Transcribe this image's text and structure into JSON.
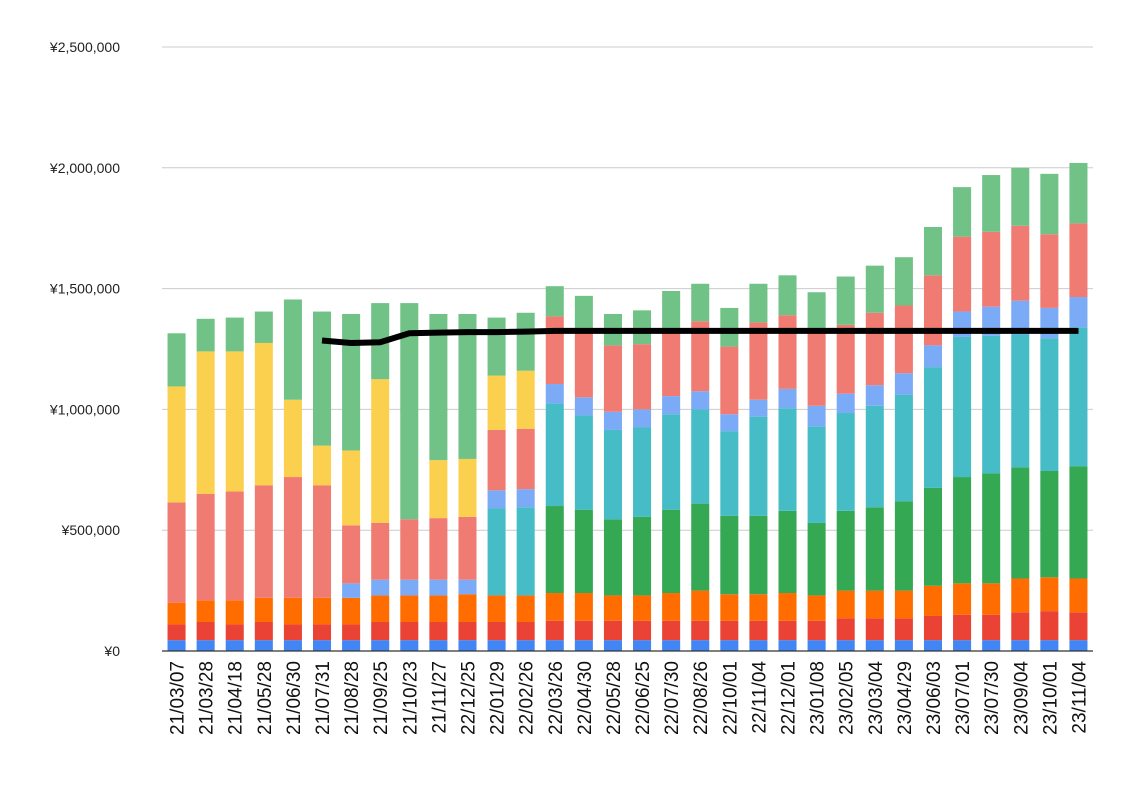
{
  "chart_data": {
    "type": "bar",
    "stacked": true,
    "grid": true,
    "ylim": [
      0,
      2500000
    ],
    "yticks": [
      {
        "value": 0,
        "label": "¥0"
      },
      {
        "value": 500000,
        "label": "¥500,000"
      },
      {
        "value": 1000000,
        "label": "¥1,000,000"
      },
      {
        "value": 1500000,
        "label": "¥1,500,000"
      },
      {
        "value": 2000000,
        "label": "¥2,000,000"
      },
      {
        "value": 2500000,
        "label": "¥2,500,000"
      }
    ],
    "categories": [
      "21/03/07",
      "21/03/28",
      "21/04/18",
      "21/05/28",
      "21/06/30",
      "21/07/31",
      "21/08/28",
      "21/09/25",
      "21/10/23",
      "21/11/27",
      "22/12/25",
      "22/01/29",
      "22/02/26",
      "22/03/26",
      "22/04/30",
      "22/05/28",
      "22/06/25",
      "22/07/30",
      "22/08/26",
      "22/10/01",
      "22/11/04",
      "22/12/01",
      "23/01/08",
      "23/02/05",
      "23/03/04",
      "23/04/29",
      "23/06/03",
      "23/07/01",
      "23/07/30",
      "23/09/04",
      "23/10/01",
      "23/11/04"
    ],
    "series": [
      {
        "color": "#4285f4",
        "values": [
          45000,
          45000,
          45000,
          45000,
          45000,
          45000,
          45000,
          45000,
          45000,
          45000,
          45000,
          45000,
          45000,
          45000,
          45000,
          45000,
          45000,
          45000,
          45000,
          45000,
          45000,
          45000,
          45000,
          45000,
          45000,
          45000,
          45000,
          45000,
          45000,
          45000,
          45000,
          45000
        ]
      },
      {
        "color": "#ea4335",
        "values": [
          65000,
          75000,
          65000,
          75000,
          65000,
          65000,
          65000,
          75000,
          75000,
          75000,
          75000,
          75000,
          75000,
          80000,
          80000,
          80000,
          80000,
          80000,
          80000,
          80000,
          80000,
          80000,
          80000,
          90000,
          90000,
          90000,
          100000,
          105000,
          105000,
          115000,
          120000,
          115000
        ]
      },
      {
        "color": "#ff6d01",
        "values": [
          90000,
          90000,
          100000,
          100000,
          110000,
          110000,
          110000,
          110000,
          110000,
          110000,
          115000,
          110000,
          110000,
          115000,
          115000,
          105000,
          105000,
          115000,
          125000,
          110000,
          110000,
          115000,
          105000,
          115000,
          115000,
          115000,
          125000,
          130000,
          130000,
          140000,
          140000,
          140000
        ]
      },
      {
        "color": "#34a853",
        "values": [
          0,
          0,
          0,
          0,
          0,
          0,
          0,
          0,
          0,
          0,
          0,
          0,
          0,
          360000,
          345000,
          315000,
          325000,
          345000,
          360000,
          325000,
          325000,
          340000,
          300000,
          330000,
          345000,
          370000,
          405000,
          440000,
          455000,
          460000,
          440000,
          465000
        ]
      },
      {
        "color": "#46bdc6",
        "values": [
          0,
          0,
          0,
          0,
          0,
          0,
          0,
          0,
          0,
          0,
          0,
          360000,
          365000,
          425000,
          390000,
          370000,
          370000,
          395000,
          390000,
          350000,
          410000,
          425000,
          400000,
          405000,
          420000,
          440000,
          500000,
          580000,
          570000,
          550000,
          550000,
          575000
        ]
      },
      {
        "color": "#7baaf7",
        "values": [
          0,
          0,
          0,
          0,
          0,
          0,
          60000,
          65000,
          65000,
          65000,
          60000,
          75000,
          75000,
          80000,
          75000,
          75000,
          75000,
          75000,
          75000,
          70000,
          70000,
          80000,
          85000,
          80000,
          85000,
          90000,
          90000,
          105000,
          120000,
          140000,
          125000,
          125000
        ]
      },
      {
        "color": "#f07b72",
        "values": [
          415000,
          440000,
          450000,
          465000,
          500000,
          465000,
          240000,
          235000,
          250000,
          255000,
          260000,
          250000,
          250000,
          280000,
          275000,
          275000,
          270000,
          275000,
          290000,
          280000,
          320000,
          305000,
          300000,
          285000,
          300000,
          280000,
          290000,
          310000,
          310000,
          310000,
          305000,
          305000
        ]
      },
      {
        "color": "#fcd04f",
        "values": [
          480000,
          590000,
          580000,
          590000,
          320000,
          165000,
          310000,
          595000,
          0,
          240000,
          240000,
          225000,
          240000,
          0,
          0,
          0,
          0,
          0,
          0,
          0,
          0,
          0,
          0,
          0,
          0,
          0,
          0,
          0,
          0,
          0,
          0,
          0
        ]
      },
      {
        "color": "#71c287",
        "values": [
          220000,
          135000,
          140000,
          130000,
          415000,
          555000,
          565000,
          315000,
          895000,
          605000,
          600000,
          240000,
          240000,
          125000,
          145000,
          130000,
          140000,
          160000,
          155000,
          160000,
          160000,
          165000,
          170000,
          200000,
          195000,
          200000,
          200000,
          205000,
          235000,
          240000,
          250000,
          250000
        ]
      }
    ],
    "line": {
      "color": "#000000",
      "values": [
        null,
        null,
        null,
        null,
        null,
        1285000,
        1275000,
        1278000,
        1315000,
        1318000,
        1320000,
        1320000,
        1322000,
        1325000,
        1325000,
        1325000,
        1325000,
        1325000,
        1325000,
        1325000,
        1325000,
        1325000,
        1325000,
        1325000,
        1325000,
        1325000,
        1325000,
        1325000,
        1325000,
        1325000,
        1325000,
        1325000
      ]
    }
  }
}
